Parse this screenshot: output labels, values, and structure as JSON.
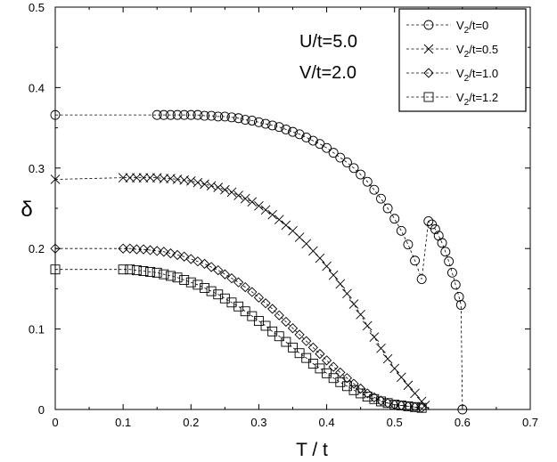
{
  "chart_data": {
    "type": "scatter",
    "xlabel": "T / t",
    "ylabel": "δ",
    "xlim": [
      0,
      0.7
    ],
    "ylim": [
      0,
      0.5
    ],
    "x_ticks": [
      "0",
      "0.1",
      "0.2",
      "0.3",
      "0.4",
      "0.5",
      "0.6",
      "0.7"
    ],
    "y_ticks": [
      "0",
      "0.1",
      "0.2",
      "0.3",
      "0.4",
      "0.5"
    ],
    "annotations": [
      "U/t=5.0",
      "V/t=2.0"
    ],
    "legend_position": "top-right",
    "series": [
      {
        "name": "V2/t=0",
        "label_main": "V",
        "label_sub": "2",
        "label_rest": "/t=0",
        "marker": "circle",
        "points": [
          [
            0.0,
            0.366
          ],
          [
            0.15,
            0.366
          ],
          [
            0.16,
            0.366
          ],
          [
            0.17,
            0.366
          ],
          [
            0.18,
            0.366
          ],
          [
            0.19,
            0.366
          ],
          [
            0.2,
            0.366
          ],
          [
            0.21,
            0.366
          ],
          [
            0.22,
            0.365
          ],
          [
            0.23,
            0.365
          ],
          [
            0.24,
            0.364
          ],
          [
            0.25,
            0.364
          ],
          [
            0.26,
            0.363
          ],
          [
            0.27,
            0.362
          ],
          [
            0.28,
            0.36
          ],
          [
            0.29,
            0.359
          ],
          [
            0.3,
            0.357
          ],
          [
            0.31,
            0.355
          ],
          [
            0.32,
            0.353
          ],
          [
            0.33,
            0.351
          ],
          [
            0.34,
            0.348
          ],
          [
            0.35,
            0.345
          ],
          [
            0.36,
            0.342
          ],
          [
            0.37,
            0.338
          ],
          [
            0.38,
            0.334
          ],
          [
            0.39,
            0.33
          ],
          [
            0.4,
            0.325
          ],
          [
            0.41,
            0.319
          ],
          [
            0.42,
            0.313
          ],
          [
            0.43,
            0.307
          ],
          [
            0.44,
            0.3
          ],
          [
            0.45,
            0.292
          ],
          [
            0.46,
            0.283
          ],
          [
            0.47,
            0.273
          ],
          [
            0.48,
            0.262
          ],
          [
            0.49,
            0.25
          ],
          [
            0.5,
            0.237
          ],
          [
            0.51,
            0.222
          ],
          [
            0.52,
            0.205
          ],
          [
            0.53,
            0.185
          ],
          [
            0.54,
            0.162
          ],
          [
            0.55,
            0.234
          ],
          [
            0.555,
            0.23
          ],
          [
            0.56,
            0.224
          ],
          [
            0.565,
            0.216
          ],
          [
            0.57,
            0.207
          ],
          [
            0.575,
            0.196
          ],
          [
            0.58,
            0.184
          ],
          [
            0.585,
            0.17
          ],
          [
            0.59,
            0.155
          ],
          [
            0.595,
            0.14
          ],
          [
            0.598,
            0.13
          ],
          [
            0.6,
            0.0
          ]
        ]
      },
      {
        "name": "V2/t=0.5",
        "label_main": "V",
        "label_sub": "2",
        "label_rest": "/t=0.5",
        "marker": "x",
        "points": [
          [
            0.0,
            0.286
          ],
          [
            0.1,
            0.288
          ],
          [
            0.11,
            0.288
          ],
          [
            0.12,
            0.288
          ],
          [
            0.13,
            0.288
          ],
          [
            0.14,
            0.288
          ],
          [
            0.15,
            0.288
          ],
          [
            0.16,
            0.287
          ],
          [
            0.17,
            0.287
          ],
          [
            0.18,
            0.286
          ],
          [
            0.19,
            0.285
          ],
          [
            0.2,
            0.284
          ],
          [
            0.21,
            0.282
          ],
          [
            0.22,
            0.28
          ],
          [
            0.23,
            0.278
          ],
          [
            0.24,
            0.276
          ],
          [
            0.25,
            0.273
          ],
          [
            0.26,
            0.27
          ],
          [
            0.27,
            0.266
          ],
          [
            0.28,
            0.262
          ],
          [
            0.29,
            0.258
          ],
          [
            0.3,
            0.253
          ],
          [
            0.31,
            0.248
          ],
          [
            0.32,
            0.242
          ],
          [
            0.33,
            0.236
          ],
          [
            0.34,
            0.229
          ],
          [
            0.35,
            0.222
          ],
          [
            0.36,
            0.214
          ],
          [
            0.37,
            0.206
          ],
          [
            0.38,
            0.197
          ],
          [
            0.39,
            0.188
          ],
          [
            0.4,
            0.178
          ],
          [
            0.41,
            0.167
          ],
          [
            0.42,
            0.156
          ],
          [
            0.43,
            0.144
          ],
          [
            0.44,
            0.131
          ],
          [
            0.45,
            0.118
          ],
          [
            0.46,
            0.104
          ],
          [
            0.47,
            0.09
          ],
          [
            0.48,
            0.076
          ],
          [
            0.49,
            0.063
          ],
          [
            0.5,
            0.051
          ],
          [
            0.51,
            0.04
          ],
          [
            0.52,
            0.03
          ],
          [
            0.53,
            0.02
          ],
          [
            0.54,
            0.01
          ],
          [
            0.545,
            0.005
          ]
        ]
      },
      {
        "name": "V2/t=1.0",
        "label_main": "V",
        "label_sub": "2",
        "label_rest": "/t=1.0",
        "marker": "diamond",
        "points": [
          [
            0.0,
            0.2
          ],
          [
            0.1,
            0.2
          ],
          [
            0.11,
            0.2
          ],
          [
            0.12,
            0.199
          ],
          [
            0.13,
            0.199
          ],
          [
            0.14,
            0.198
          ],
          [
            0.15,
            0.197
          ],
          [
            0.16,
            0.196
          ],
          [
            0.17,
            0.194
          ],
          [
            0.18,
            0.192
          ],
          [
            0.19,
            0.19
          ],
          [
            0.2,
            0.187
          ],
          [
            0.21,
            0.184
          ],
          [
            0.22,
            0.181
          ],
          [
            0.23,
            0.177
          ],
          [
            0.24,
            0.173
          ],
          [
            0.25,
            0.168
          ],
          [
            0.26,
            0.163
          ],
          [
            0.27,
            0.158
          ],
          [
            0.28,
            0.152
          ],
          [
            0.29,
            0.146
          ],
          [
            0.3,
            0.139
          ],
          [
            0.31,
            0.132
          ],
          [
            0.32,
            0.125
          ],
          [
            0.33,
            0.117
          ],
          [
            0.34,
            0.109
          ],
          [
            0.35,
            0.101
          ],
          [
            0.36,
            0.093
          ],
          [
            0.37,
            0.085
          ],
          [
            0.38,
            0.077
          ],
          [
            0.39,
            0.069
          ],
          [
            0.4,
            0.061
          ],
          [
            0.41,
            0.053
          ],
          [
            0.42,
            0.046
          ],
          [
            0.43,
            0.039
          ],
          [
            0.44,
            0.032
          ],
          [
            0.45,
            0.026
          ],
          [
            0.46,
            0.02
          ],
          [
            0.47,
            0.015
          ],
          [
            0.48,
            0.011
          ],
          [
            0.49,
            0.008
          ],
          [
            0.5,
            0.006
          ],
          [
            0.51,
            0.005
          ],
          [
            0.52,
            0.004
          ],
          [
            0.53,
            0.003
          ],
          [
            0.54,
            0.002
          ]
        ]
      },
      {
        "name": "V2/t=1.2",
        "label_main": "V",
        "label_sub": "2",
        "label_rest": "/t=1.2",
        "marker": "square",
        "points": [
          [
            0.0,
            0.174
          ],
          [
            0.1,
            0.174
          ],
          [
            0.11,
            0.174
          ],
          [
            0.12,
            0.173
          ],
          [
            0.13,
            0.172
          ],
          [
            0.14,
            0.171
          ],
          [
            0.15,
            0.17
          ],
          [
            0.16,
            0.168
          ],
          [
            0.17,
            0.166
          ],
          [
            0.18,
            0.164
          ],
          [
            0.19,
            0.161
          ],
          [
            0.2,
            0.158
          ],
          [
            0.21,
            0.155
          ],
          [
            0.22,
            0.151
          ],
          [
            0.23,
            0.147
          ],
          [
            0.24,
            0.143
          ],
          [
            0.25,
            0.138
          ],
          [
            0.26,
            0.133
          ],
          [
            0.27,
            0.128
          ],
          [
            0.28,
            0.122
          ],
          [
            0.29,
            0.116
          ],
          [
            0.3,
            0.11
          ],
          [
            0.31,
            0.104
          ],
          [
            0.32,
            0.097
          ],
          [
            0.33,
            0.091
          ],
          [
            0.34,
            0.084
          ],
          [
            0.35,
            0.077
          ],
          [
            0.36,
            0.07
          ],
          [
            0.37,
            0.064
          ],
          [
            0.38,
            0.057
          ],
          [
            0.39,
            0.051
          ],
          [
            0.4,
            0.045
          ],
          [
            0.41,
            0.039
          ],
          [
            0.42,
            0.034
          ],
          [
            0.43,
            0.029
          ],
          [
            0.44,
            0.024
          ],
          [
            0.45,
            0.02
          ],
          [
            0.46,
            0.016
          ],
          [
            0.47,
            0.013
          ],
          [
            0.48,
            0.01
          ],
          [
            0.49,
            0.008
          ],
          [
            0.5,
            0.006
          ],
          [
            0.51,
            0.005
          ],
          [
            0.52,
            0.004
          ],
          [
            0.53,
            0.003
          ],
          [
            0.54,
            0.002
          ]
        ]
      }
    ]
  }
}
